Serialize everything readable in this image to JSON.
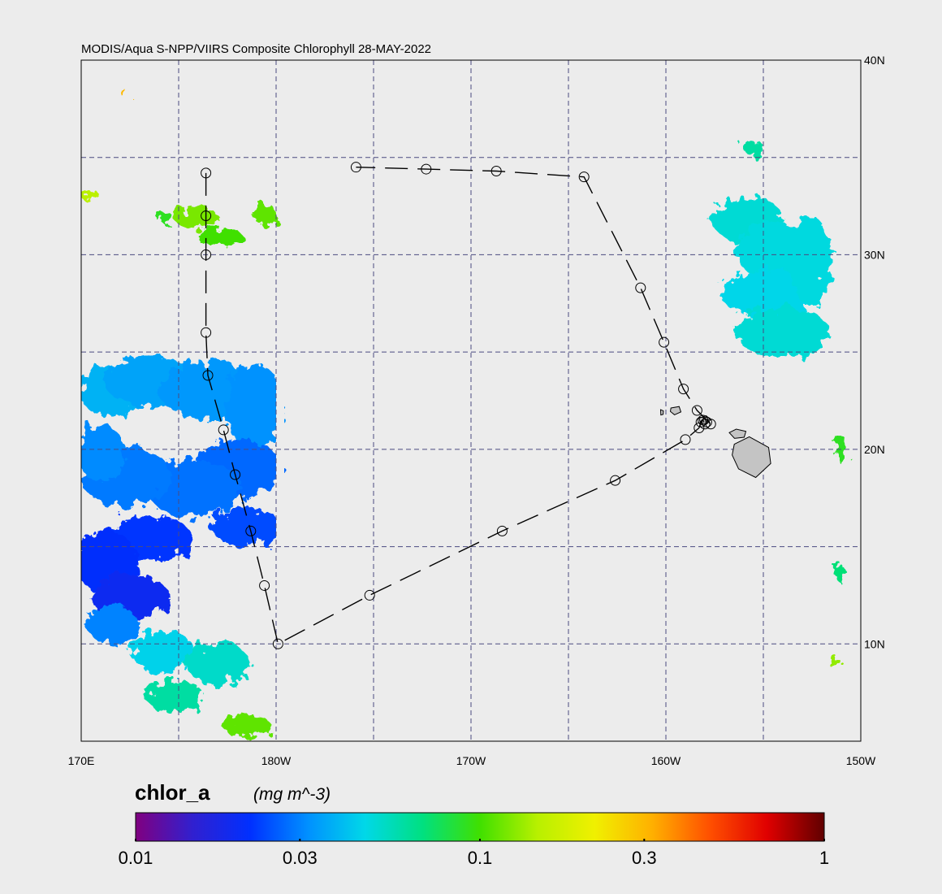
{
  "map": {
    "title": "MODIS/Aqua S-NPP/VIIRS Composite Chlorophyll 28-MAY-2022",
    "extent": {
      "lon": [
        170,
        210
      ],
      "lat": [
        5,
        40
      ]
    },
    "x_ticks": [
      {
        "lon": 170,
        "label": "170E"
      },
      {
        "lon": 180,
        "label": "180W"
      },
      {
        "lon": 190,
        "label": "170W"
      },
      {
        "lon": 200,
        "label": "160W"
      },
      {
        "lon": 210,
        "label": "150W"
      }
    ],
    "y_ticks": [
      {
        "lat": 40,
        "label": "40N"
      },
      {
        "lat": 30,
        "label": "30N"
      },
      {
        "lat": 20,
        "label": "20N"
      },
      {
        "lat": 10,
        "label": "10N"
      }
    ],
    "grid": {
      "lon": [
        175,
        180,
        185,
        190,
        195,
        200,
        205
      ],
      "lat": [
        35,
        30,
        25,
        20,
        15,
        10
      ]
    },
    "track_stations": [
      [
        176.4,
        34.2
      ],
      [
        176.4,
        32.0
      ],
      [
        176.4,
        30.0
      ],
      [
        176.4,
        26.0
      ],
      [
        176.5,
        23.8
      ],
      [
        177.3,
        21.0
      ],
      [
        177.9,
        18.7
      ],
      [
        178.7,
        15.8
      ],
      [
        179.4,
        13.0
      ],
      [
        180.1,
        10.0
      ],
      [
        184.8,
        12.5
      ],
      [
        191.6,
        15.8
      ],
      [
        197.4,
        18.4
      ],
      [
        201.0,
        20.5
      ],
      [
        201.7,
        21.1
      ],
      [
        201.8,
        21.4
      ],
      [
        201.9,
        21.5
      ],
      [
        202.0,
        21.3
      ],
      [
        202.1,
        21.4
      ],
      [
        202.3,
        21.3
      ],
      [
        201.6,
        22.0
      ],
      [
        200.9,
        23.1
      ],
      [
        199.9,
        25.5
      ],
      [
        198.7,
        28.3
      ],
      [
        195.8,
        34.0
      ],
      [
        191.3,
        34.3
      ],
      [
        187.7,
        34.4
      ],
      [
        184.1,
        34.5
      ]
    ],
    "islands": [
      {
        "name": "hawaii",
        "lon": 204.5,
        "lat": 19.6
      },
      {
        "name": "maui",
        "lon": 203.7,
        "lat": 20.8
      },
      {
        "name": "oahu",
        "lon": 202.0,
        "lat": 21.5
      },
      {
        "name": "kauai",
        "lon": 200.5,
        "lat": 22.0
      },
      {
        "name": "niihau",
        "lon": 199.8,
        "lat": 21.9
      }
    ],
    "chlorophyll_patches": [
      {
        "lon": 171.5,
        "lat": 23.0,
        "rx": 1.6,
        "ry": 1.3,
        "value": 0.038
      },
      {
        "lon": 173.5,
        "lat": 23.5,
        "rx": 2.3,
        "ry": 1.3,
        "value": 0.035
      },
      {
        "lon": 176.5,
        "lat": 23.0,
        "rx": 2.5,
        "ry": 1.5,
        "value": 0.033
      },
      {
        "lon": 178.9,
        "lat": 22.2,
        "rx": 1.5,
        "ry": 2.2,
        "value": 0.032
      },
      {
        "lon": 178.0,
        "lat": 19.0,
        "rx": 2.3,
        "ry": 1.5,
        "value": 0.027
      },
      {
        "lon": 175.8,
        "lat": 18.0,
        "rx": 2.4,
        "ry": 1.5,
        "value": 0.028
      },
      {
        "lon": 172.3,
        "lat": 18.6,
        "rx": 2.3,
        "ry": 1.6,
        "value": 0.029
      },
      {
        "lon": 171.0,
        "lat": 19.8,
        "rx": 1.2,
        "ry": 1.5,
        "value": 0.031
      },
      {
        "lon": 178.5,
        "lat": 16.0,
        "rx": 1.8,
        "ry": 1.0,
        "value": 0.024
      },
      {
        "lon": 173.5,
        "lat": 15.4,
        "rx": 2.2,
        "ry": 1.2,
        "value": 0.022
      },
      {
        "lon": 171.3,
        "lat": 14.2,
        "rx": 1.6,
        "ry": 1.6,
        "value": 0.021
      },
      {
        "lon": 172.5,
        "lat": 12.4,
        "rx": 2.0,
        "ry": 1.2,
        "value": 0.019
      },
      {
        "lon": 171.6,
        "lat": 11.0,
        "rx": 1.3,
        "ry": 1.0,
        "value": 0.03
      },
      {
        "lon": 174.2,
        "lat": 9.6,
        "rx": 1.6,
        "ry": 1.1,
        "value": 0.045
      },
      {
        "lon": 177.0,
        "lat": 9.0,
        "rx": 1.6,
        "ry": 1.1,
        "value": 0.052
      },
      {
        "lon": 174.8,
        "lat": 7.3,
        "rx": 1.5,
        "ry": 0.8,
        "value": 0.06
      },
      {
        "lon": 178.5,
        "lat": 5.8,
        "rx": 1.2,
        "ry": 0.6,
        "value": 0.11
      },
      {
        "lon": 174.2,
        "lat": 32.0,
        "rx": 0.4,
        "ry": 0.3,
        "value": 0.09
      },
      {
        "lon": 175.9,
        "lat": 31.9,
        "rx": 1.1,
        "ry": 0.6,
        "value": 0.12
      },
      {
        "lon": 177.1,
        "lat": 30.9,
        "rx": 1.2,
        "ry": 0.45,
        "value": 0.1
      },
      {
        "lon": 179.4,
        "lat": 32.1,
        "rx": 0.6,
        "ry": 0.55,
        "value": 0.11
      },
      {
        "lon": 170.4,
        "lat": 33.1,
        "rx": 0.5,
        "ry": 0.25,
        "value": 0.15
      },
      {
        "lon": 172.2,
        "lat": 38.3,
        "rx": 0.2,
        "ry": 0.12,
        "value": 0.3
      },
      {
        "lon": 204.2,
        "lat": 31.8,
        "rx": 1.8,
        "ry": 1.2,
        "value": 0.05
      },
      {
        "lon": 205.6,
        "lat": 30.2,
        "rx": 2.0,
        "ry": 1.5,
        "value": 0.048
      },
      {
        "lon": 205.3,
        "lat": 28.0,
        "rx": 2.5,
        "ry": 1.2,
        "value": 0.046
      },
      {
        "lon": 206.0,
        "lat": 26.0,
        "rx": 2.4,
        "ry": 1.3,
        "value": 0.05
      },
      {
        "lon": 207.4,
        "lat": 29.7,
        "rx": 1.1,
        "ry": 2.3,
        "value": 0.048
      },
      {
        "lon": 204.5,
        "lat": 35.5,
        "rx": 0.5,
        "ry": 0.4,
        "value": 0.06
      },
      {
        "lon": 209.0,
        "lat": 20.0,
        "rx": 0.35,
        "ry": 0.7,
        "value": 0.09
      },
      {
        "lon": 208.9,
        "lat": 13.7,
        "rx": 0.2,
        "ry": 0.5,
        "value": 0.07
      },
      {
        "lon": 208.7,
        "lat": 9.0,
        "rx": 0.3,
        "ry": 0.3,
        "value": 0.13
      }
    ]
  },
  "colorbar": {
    "variable": "chlor_a",
    "units": "(mg m^-3)",
    "scale": "log",
    "range": [
      0.01,
      1
    ],
    "ticks": [
      {
        "value": 0.01,
        "label": "0.01"
      },
      {
        "value": 0.03,
        "label": "0.03"
      },
      {
        "value": 0.1,
        "label": "0.1"
      },
      {
        "value": 0.3,
        "label": "0.3"
      },
      {
        "value": 1,
        "label": "1"
      }
    ],
    "stops": [
      "#800080",
      "#3020d0",
      "#0030ff",
      "#0090ff",
      "#00d8e8",
      "#00e080",
      "#40e000",
      "#b8f000",
      "#f0f000",
      "#ffb000",
      "#ff5000",
      "#e00000",
      "#600000"
    ]
  },
  "colors": {
    "background": "#ececec",
    "land": "#c4c4c4",
    "grid": "#4a4a80"
  }
}
